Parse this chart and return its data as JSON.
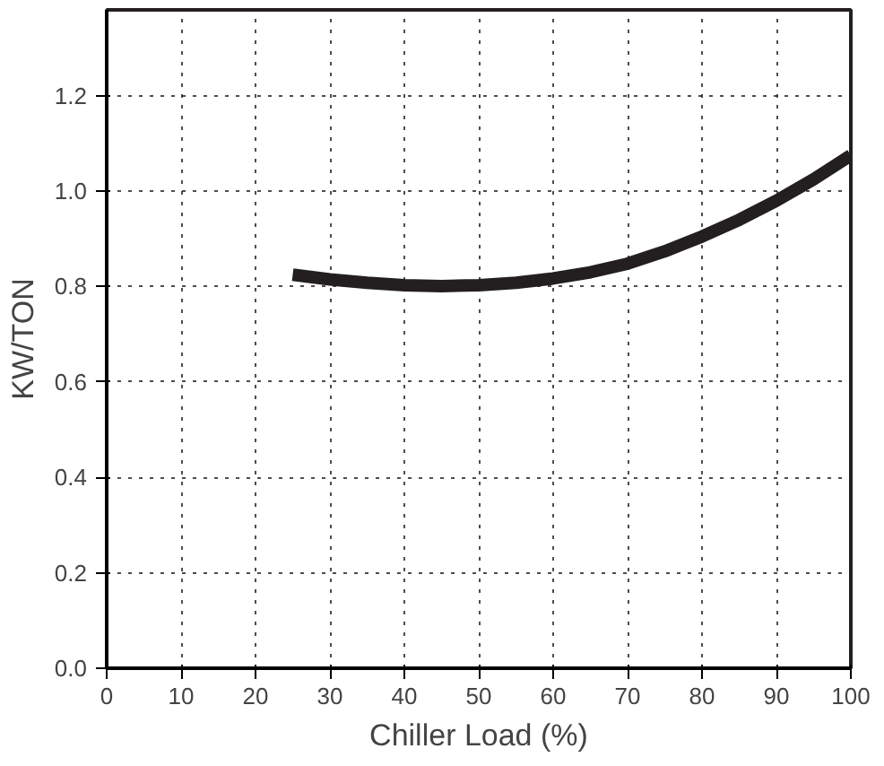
{
  "chart_data": {
    "type": "line",
    "xlabel": "Chiller Load (%)",
    "ylabel": "KW/TON",
    "x": [
      25,
      30,
      35,
      40,
      45,
      50,
      55,
      60,
      65,
      70,
      75,
      80,
      85,
      90,
      95,
      100
    ],
    "series": [
      {
        "color": "#231f20",
        "values": [
          0.825,
          0.815,
          0.808,
          0.803,
          0.801,
          0.803,
          0.808,
          0.817,
          0.83,
          0.848,
          0.874,
          0.905,
          0.94,
          0.98,
          1.025,
          1.075
        ]
      }
    ],
    "xlim": [
      0,
      100
    ],
    "ylim": [
      0,
      1.38
    ],
    "xticks": [
      0,
      10,
      20,
      30,
      40,
      50,
      60,
      70,
      80,
      90,
      100
    ],
    "yticks": [
      {
        "value": 0,
        "label": "0.0"
      },
      0.2,
      0.4,
      0.6,
      0.8,
      {
        "value": 1,
        "label": "1.0"
      },
      1.2
    ],
    "grid": true,
    "line_style": "solid",
    "marker": "none"
  }
}
